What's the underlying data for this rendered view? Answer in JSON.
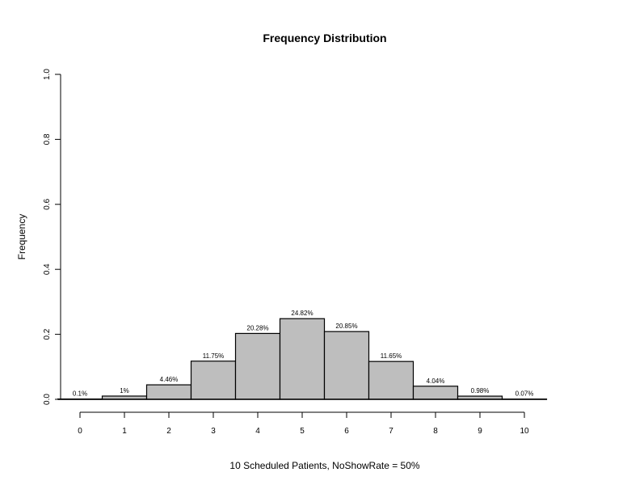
{
  "chart_data": {
    "type": "bar",
    "title": "Frequency Distribution",
    "xlabel": "10 Scheduled Patients,  NoShowRate = 50%",
    "ylabel": "Frequency",
    "categories": [
      "0",
      "1",
      "2",
      "3",
      "4",
      "5",
      "6",
      "7",
      "8",
      "9",
      "10"
    ],
    "values": [
      0.001,
      0.01,
      0.0446,
      0.1175,
      0.2028,
      0.2482,
      0.2085,
      0.1165,
      0.0404,
      0.0098,
      0.0007
    ],
    "data_labels": [
      "0.1%",
      "1%",
      "4.46%",
      "11.75%",
      "20.28%",
      "24.82%",
      "20.85%",
      "11.65%",
      "4.04%",
      "0.98%",
      "0.07%"
    ],
    "ylim": [
      0,
      1.0
    ],
    "yticks": [
      "0.0",
      "0.2",
      "0.4",
      "0.6",
      "0.8",
      "1.0"
    ],
    "xticks": [
      "0",
      "1",
      "2",
      "3",
      "4",
      "5",
      "6",
      "7",
      "8",
      "9",
      "10"
    ],
    "grid": false,
    "legend": "none",
    "bar_color": "#bebebe",
    "edge_color": "#000000"
  }
}
